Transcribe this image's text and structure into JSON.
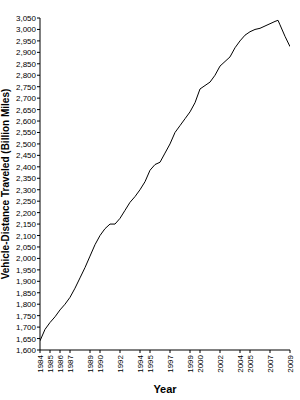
{
  "chart_data": {
    "type": "line",
    "xlabel": "Year",
    "ylabel": "Vehicle-Distance Traveled (Billion Miles)",
    "color": "#000000",
    "x": [
      1984.0,
      1984.5,
      1985.0,
      1985.5,
      1986.0,
      1986.5,
      1987.0,
      1987.5,
      1988.0,
      1988.5,
      1989.0,
      1989.5,
      1990.0,
      1990.5,
      1991.0,
      1991.5,
      1992.0,
      1992.5,
      1993.0,
      1993.5,
      1994.0,
      1994.5,
      1995.0,
      1995.5,
      1996.0,
      1996.5,
      1997.0,
      1997.5,
      1998.0,
      1998.5,
      1999.0,
      1999.5,
      2000.0,
      2000.5,
      2001.0,
      2001.5,
      2002.0,
      2002.5,
      2003.0,
      2003.5,
      2004.0,
      2004.5,
      2005.0,
      2005.5,
      2006.0,
      2006.5,
      2007.0,
      2007.5,
      2007.8,
      2008.0,
      2008.5,
      2009.0
    ],
    "values": [
      1640,
      1690,
      1720,
      1745,
      1775,
      1800,
      1830,
      1870,
      1915,
      1960,
      2010,
      2060,
      2100,
      2130,
      2150,
      2150,
      2175,
      2210,
      2245,
      2270,
      2300,
      2335,
      2385,
      2410,
      2420,
      2460,
      2500,
      2550,
      2580,
      2610,
      2640,
      2680,
      2740,
      2755,
      2770,
      2800,
      2840,
      2860,
      2880,
      2920,
      2950,
      2975,
      2990,
      3000,
      3005,
      3015,
      3025,
      3035,
      3040,
      3020,
      2970,
      2925
    ],
    "xlim": [
      1984,
      2009
    ],
    "xticks": [
      1984,
      1985,
      1986,
      1987,
      1989,
      1990,
      1992,
      1994,
      1995,
      1997,
      1999,
      2000,
      2002,
      2004,
      2005,
      2007,
      2009
    ],
    "ylim": [
      1600,
      3050
    ],
    "yticks": [
      {
        "value": 1600,
        "label": "1,600"
      },
      {
        "value": 1650,
        "label": "1,650"
      },
      {
        "value": 1700,
        "label": "1,700"
      },
      {
        "value": 1750,
        "label": "1,750"
      },
      {
        "value": 1800,
        "label": "1,800"
      },
      {
        "value": 1850,
        "label": "1,850"
      },
      {
        "value": 1900,
        "label": "1,900"
      },
      {
        "value": 1950,
        "label": "1,950"
      },
      {
        "value": 2000,
        "label": "2,000"
      },
      {
        "value": 2050,
        "label": "2,050"
      },
      {
        "value": 2100,
        "label": "2,100"
      },
      {
        "value": 2150,
        "label": "2,150"
      },
      {
        "value": 2200,
        "label": "2,200"
      },
      {
        "value": 2250,
        "label": "2,250"
      },
      {
        "value": 2300,
        "label": "2,300"
      },
      {
        "value": 2350,
        "label": "2,350"
      },
      {
        "value": 2400,
        "label": "2,400"
      },
      {
        "value": 2450,
        "label": "2,450"
      },
      {
        "value": 2500,
        "label": "2,500"
      },
      {
        "value": 2550,
        "label": "2,550"
      },
      {
        "value": 2600,
        "label": "2,600"
      },
      {
        "value": 2650,
        "label": "2,650"
      },
      {
        "value": 2700,
        "label": "2,700"
      },
      {
        "value": 2750,
        "label": "2,750"
      },
      {
        "value": 2800,
        "label": "2,800"
      },
      {
        "value": 2850,
        "label": "2,850"
      },
      {
        "value": 2900,
        "label": "2,900"
      },
      {
        "value": 2950,
        "label": "2,950"
      },
      {
        "value": 3000,
        "label": "3,000"
      },
      {
        "value": 3050,
        "label": "3,050"
      }
    ],
    "grid": false
  }
}
